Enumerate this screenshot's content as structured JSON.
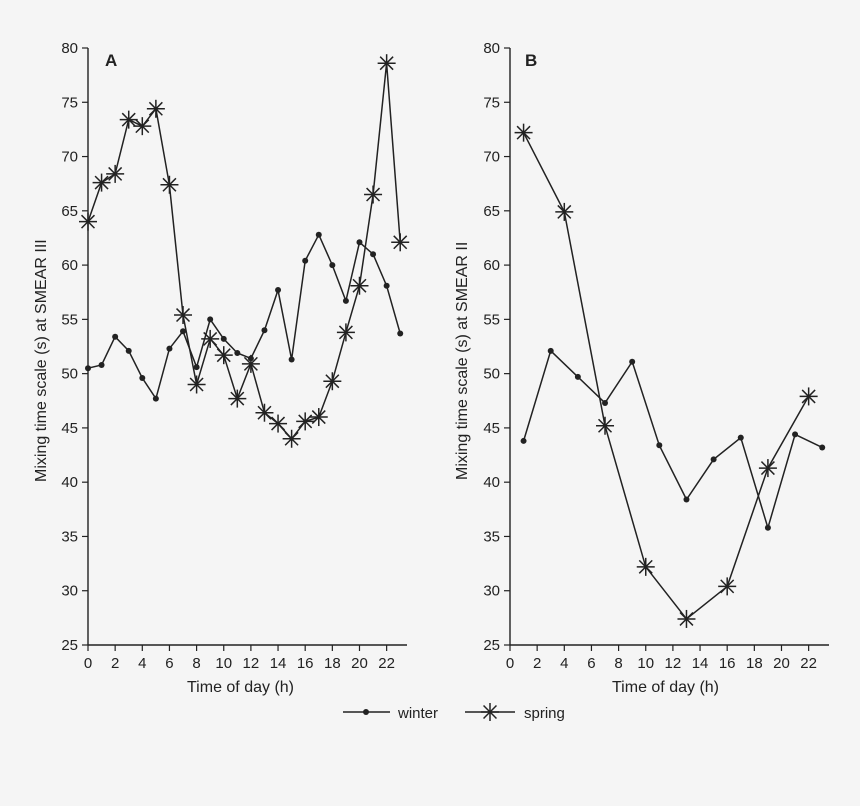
{
  "chart_data": [
    {
      "type": "line",
      "panel": "A",
      "xlabel": "Time of day (h)",
      "ylabel": "Mixing time scale (s) at SMEAR III",
      "xlim": [
        0,
        23.5
      ],
      "ylim": [
        25,
        80
      ],
      "xticks": [
        0,
        2,
        4,
        6,
        8,
        10,
        12,
        14,
        16,
        18,
        20,
        22
      ],
      "yticks": [
        25,
        30,
        35,
        40,
        45,
        50,
        55,
        60,
        65,
        70,
        75,
        80
      ],
      "series": [
        {
          "name": "winter",
          "marker": "dot",
          "x": [
            0,
            1,
            2,
            3,
            4,
            5,
            6,
            7,
            8,
            9,
            10,
            11,
            12,
            13,
            14,
            15,
            16,
            17,
            18,
            19,
            20,
            21,
            22,
            23
          ],
          "values": [
            50.5,
            50.8,
            53.4,
            52.1,
            49.6,
            47.7,
            52.3,
            53.9,
            50.6,
            55.0,
            53.2,
            51.9,
            51.4,
            54.0,
            57.7,
            51.3,
            60.4,
            62.8,
            60.0,
            56.7,
            62.1,
            61.0,
            58.1,
            53.7
          ]
        },
        {
          "name": "spring",
          "marker": "star",
          "x": [
            0,
            1,
            2,
            3,
            4,
            5,
            6,
            7,
            8,
            9,
            10,
            11,
            12,
            13,
            14,
            15,
            16,
            17,
            18,
            19,
            20,
            21,
            22,
            23
          ],
          "values": [
            64.0,
            67.6,
            68.4,
            73.4,
            72.8,
            74.4,
            67.4,
            55.4,
            49.0,
            53.2,
            51.7,
            47.7,
            50.9,
            46.4,
            45.4,
            44.0,
            45.6,
            46.0,
            49.3,
            53.8,
            58.1,
            66.5,
            78.6,
            62.1
          ]
        }
      ]
    },
    {
      "type": "line",
      "panel": "B",
      "xlabel": "Time of day (h)",
      "ylabel": "Mixing time scale (s) at SMEAR II",
      "xlim": [
        0,
        23.5
      ],
      "ylim": [
        25,
        80
      ],
      "xticks": [
        0,
        2,
        4,
        6,
        8,
        10,
        12,
        14,
        16,
        18,
        20,
        22
      ],
      "yticks": [
        25,
        30,
        35,
        40,
        45,
        50,
        55,
        60,
        65,
        70,
        75,
        80
      ],
      "series": [
        {
          "name": "winter",
          "marker": "dot",
          "x": [
            1,
            3,
            5,
            7,
            9,
            11,
            13,
            15,
            17,
            19,
            21,
            23
          ],
          "values": [
            43.8,
            52.1,
            49.7,
            47.3,
            51.1,
            43.4,
            38.4,
            42.1,
            44.1,
            35.8,
            44.4,
            43.2
          ]
        },
        {
          "name": "spring",
          "marker": "star",
          "x": [
            1,
            4,
            7,
            10,
            13,
            16,
            19,
            22
          ],
          "values": [
            72.2,
            64.9,
            45.2,
            32.2,
            27.4,
            30.4,
            41.3,
            47.9
          ]
        }
      ]
    }
  ],
  "legend": {
    "placement": "bottom-center",
    "items": [
      {
        "label": "winter",
        "marker": "dot"
      },
      {
        "label": "spring",
        "marker": "star"
      }
    ]
  }
}
